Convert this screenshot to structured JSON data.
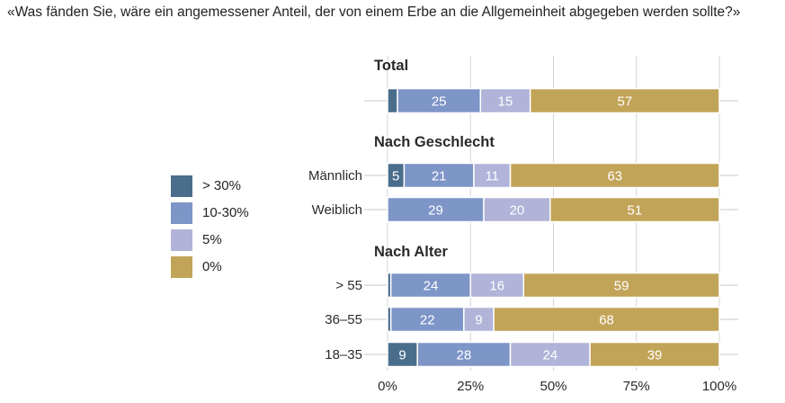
{
  "question": "«Was fänden Sie, wäre ein angemessener Anteil, der von einem Erbe an die Allgemeinheit abgegeben werden sollte?»",
  "legend": [
    {
      "label": "> 30%",
      "color": "#4a6d8c"
    },
    {
      "label": "10-30%",
      "color": "#7d95c7"
    },
    {
      "label": "5%",
      "color": "#b1b3d9"
    },
    {
      "label": "0%",
      "color": "#c2a458"
    }
  ],
  "chart_data": {
    "type": "bar",
    "orientation": "horizontal",
    "stacked": true,
    "series_names": [
      "> 30%",
      "10-30%",
      "5%",
      "0%"
    ],
    "colors": [
      "#4a6d8c",
      "#7d95c7",
      "#b1b3d9",
      "#c2a458"
    ],
    "groups": [
      {
        "title": "Total",
        "rows": [
          {
            "label": "",
            "values": [
              3,
              25,
              15,
              57
            ],
            "value_labels": [
              "",
              "25",
              "15",
              "57"
            ]
          }
        ]
      },
      {
        "title": "Nach Geschlecht",
        "rows": [
          {
            "label": "Männlich",
            "values": [
              5,
              21,
              11,
              63
            ],
            "value_labels": [
              "5",
              "21",
              "11",
              "63"
            ]
          },
          {
            "label": "Weiblich",
            "values": [
              0,
              29,
              20,
              51
            ],
            "value_labels": [
              "",
              "29",
              "20",
              "51"
            ]
          }
        ]
      },
      {
        "title": "Nach Alter",
        "rows": [
          {
            "label": "> 55",
            "values": [
              1,
              24,
              16,
              59
            ],
            "value_labels": [
              "",
              "24",
              "16",
              "59"
            ]
          },
          {
            "label": "36–55",
            "values": [
              1,
              22,
              9,
              68
            ],
            "value_labels": [
              "",
              "22",
              "9",
              "68"
            ]
          },
          {
            "label": "18–35",
            "values": [
              9,
              28,
              24,
              39
            ],
            "value_labels": [
              "9",
              "28",
              "24",
              "39"
            ]
          }
        ]
      }
    ],
    "xlim": [
      0,
      100
    ],
    "xticks": [
      0,
      25,
      50,
      75,
      100
    ],
    "xtick_labels": [
      "0%",
      "25%",
      "50%",
      "75%",
      "100%"
    ],
    "grid": true
  }
}
